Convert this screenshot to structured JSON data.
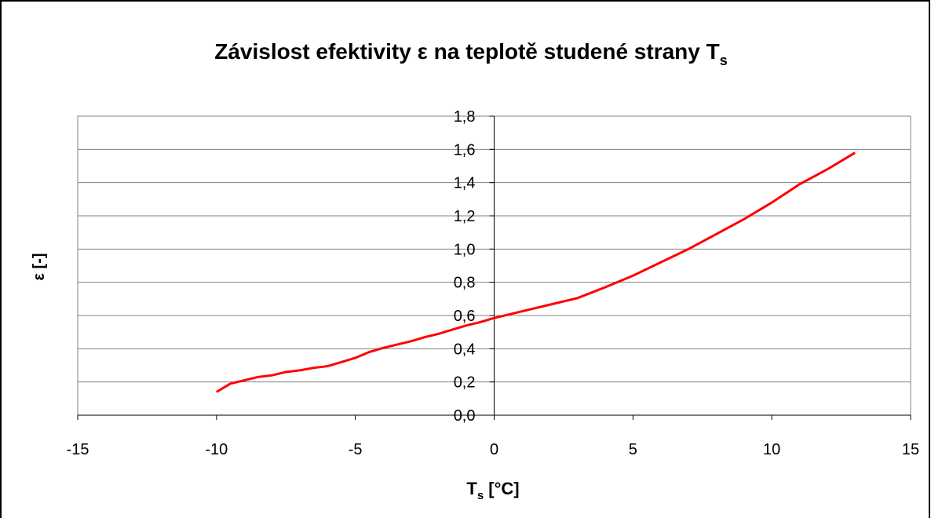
{
  "chart_data": {
    "type": "line",
    "title": [
      "Závislost efektivity ε na teplotě studené strany T",
      "s"
    ],
    "xlabel": [
      "T",
      "s",
      " [°C]"
    ],
    "ylabel": "ε [-]",
    "x": [
      -10,
      -9.5,
      -9,
      -8.5,
      -8,
      -7.5,
      -7,
      -6.5,
      -6,
      -5.5,
      -5,
      -4.5,
      -4,
      -3.5,
      -3,
      -2.5,
      -2,
      -1.5,
      -1,
      -0.5,
      0,
      1,
      2,
      3,
      4,
      5,
      6,
      7,
      8,
      9,
      10,
      11,
      12,
      13
    ],
    "series": [
      {
        "color": "#ff0000",
        "values": [
          0.14,
          0.19,
          0.21,
          0.23,
          0.24,
          0.26,
          0.27,
          0.285,
          0.295,
          0.32,
          0.345,
          0.38,
          0.405,
          0.425,
          0.445,
          0.47,
          0.49,
          0.515,
          0.54,
          0.56,
          0.585,
          0.625,
          0.665,
          0.705,
          0.77,
          0.84,
          0.92,
          1.0,
          1.09,
          1.18,
          1.28,
          1.39,
          1.48,
          1.58
        ]
      }
    ],
    "xlim": [
      -15,
      15
    ],
    "xticks": [
      -15,
      -10,
      -5,
      0,
      5,
      10,
      15
    ],
    "ylim": [
      0,
      1.8
    ],
    "yticks": [
      {
        "value": 0,
        "label": "0,0"
      },
      {
        "value": 0.2,
        "label": "0,2"
      },
      {
        "value": 0.4,
        "label": "0,4"
      },
      {
        "value": 0.6,
        "label": "0,6"
      },
      {
        "value": 0.8,
        "label": "0,8"
      },
      {
        "value": 1.0,
        "label": "1,0"
      },
      {
        "value": 1.2,
        "label": "1,2"
      },
      {
        "value": 1.4,
        "label": "1,4"
      },
      {
        "value": 1.6,
        "label": "1,6"
      },
      {
        "value": 1.8,
        "label": "1,8"
      }
    ],
    "grid": true
  }
}
